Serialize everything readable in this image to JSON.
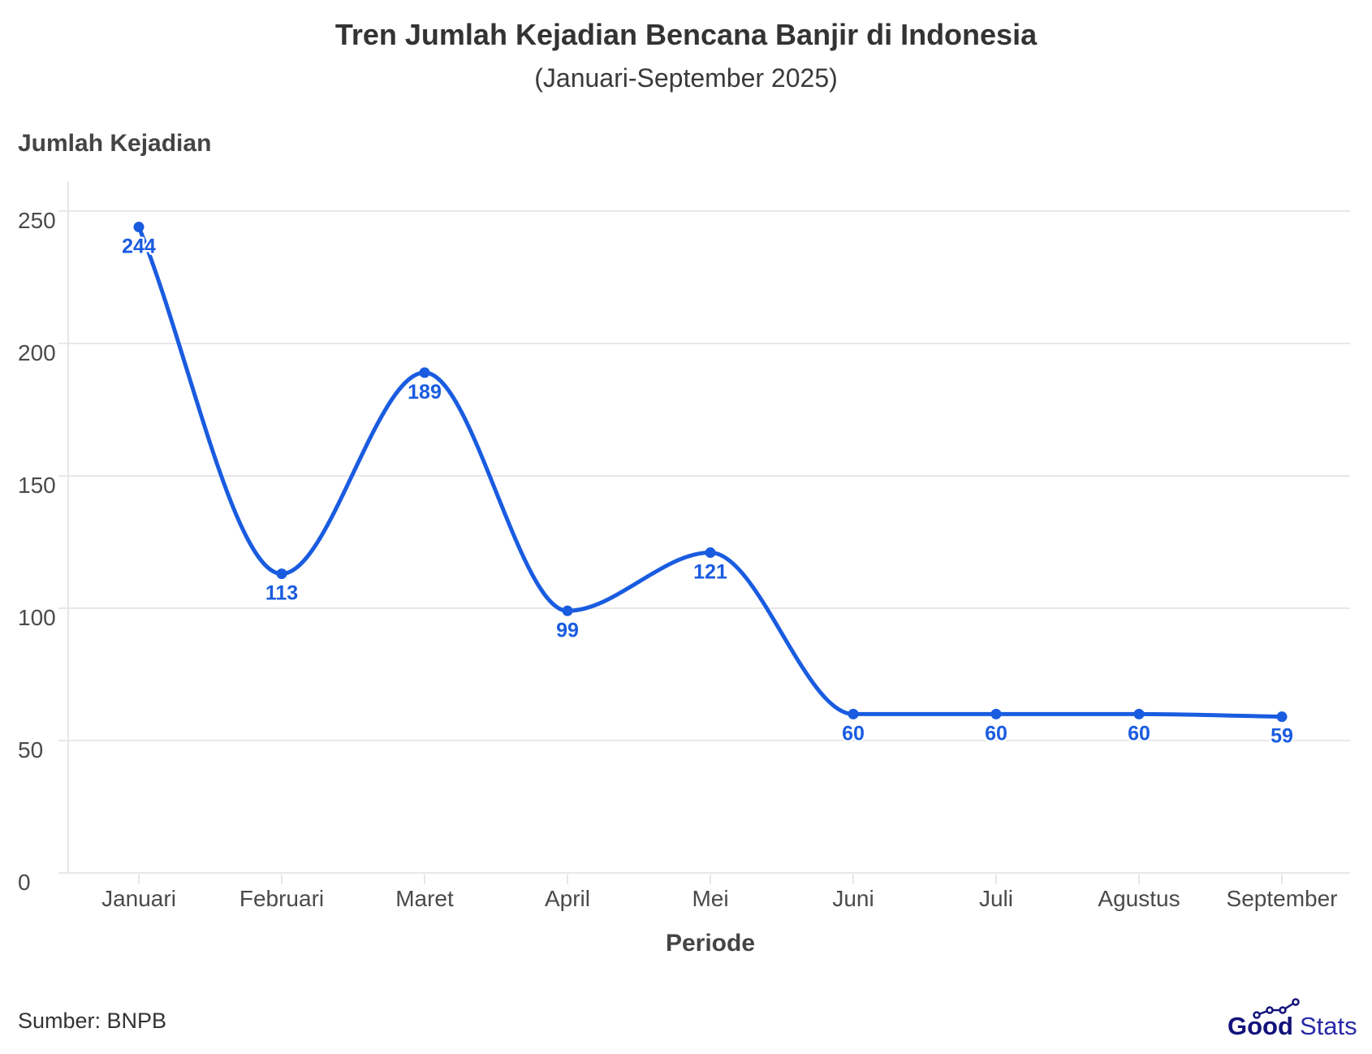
{
  "title": "Tren Jumlah Kejadian Bencana Banjir di Indonesia",
  "subtitle": "(Januari-September 2025)",
  "source": "Sumber: BNPB",
  "logo": {
    "bold": "Good",
    "light": "Stats"
  },
  "colors": {
    "line": "#1a5ce0",
    "grid": "#e8e8e8",
    "text": "#444444",
    "logo": "#12127a"
  },
  "chart_data": {
    "type": "line",
    "title": "Tren Jumlah Kejadian Bencana Banjir di Indonesia",
    "subtitle": "(Januari-September 2025)",
    "xlabel": "Periode",
    "ylabel": "Jumlah Kejadian",
    "categories": [
      "Januari",
      "Februari",
      "Maret",
      "April",
      "Mei",
      "Juni",
      "Juli",
      "Agustus",
      "September"
    ],
    "series": [
      {
        "name": "Jumlah Kejadian",
        "values": [
          244,
          113,
          189,
          99,
          121,
          60,
          60,
          60,
          59
        ]
      }
    ],
    "yticks": [
      0,
      50,
      100,
      150,
      200,
      250
    ],
    "ylim": [
      0,
      260
    ],
    "grid": true,
    "smooth": true,
    "data_labels": true,
    "legend": "none",
    "source": "Sumber: BNPB"
  }
}
